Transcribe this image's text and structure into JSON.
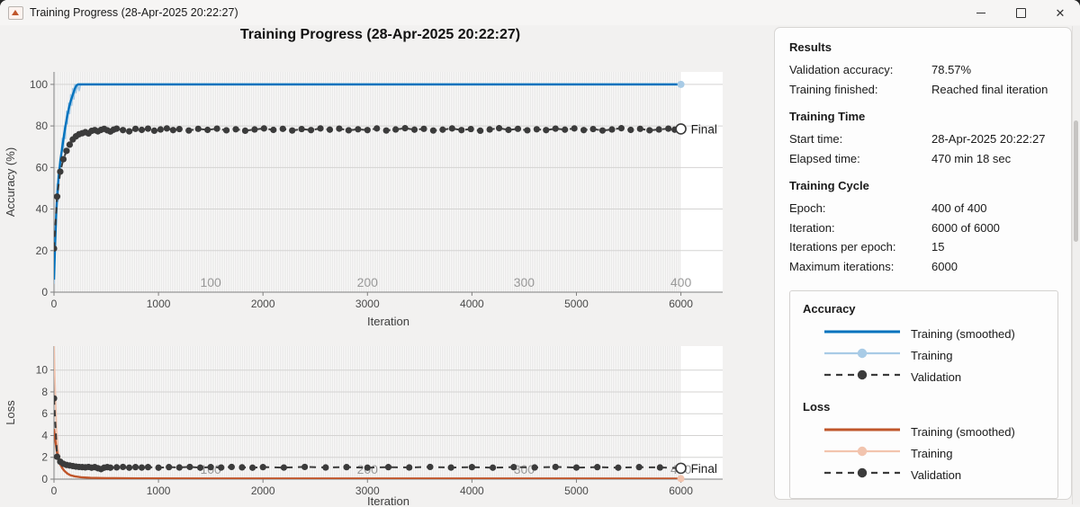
{
  "window": {
    "title": "Training Progress (28-Apr-2025 20:22:27)",
    "icons": {
      "app": "matlab-icon",
      "minimize": "minimize-icon",
      "maximize": "maximize-icon",
      "close": "close-icon"
    }
  },
  "header": {
    "title": "Training Progress (28-Apr-2025 20:22:27)"
  },
  "colors": {
    "training_smoothed_blue": "#0072bd",
    "training_raw_blue": "#a8cbe6",
    "training_smoothed_orange": "#c0562b",
    "training_raw_orange": "#f2c4ae",
    "validation_dark": "#3b3b3b",
    "epoch_label_gray": "#9a9a9a"
  },
  "panel": {
    "sections": [
      {
        "heading": "Results",
        "rows": [
          {
            "label": "Validation accuracy:",
            "value": "78.57%"
          },
          {
            "label": "Training finished:",
            "value": "Reached final iteration"
          }
        ]
      },
      {
        "heading": "Training Time",
        "rows": [
          {
            "label": "Start time:",
            "value": "28-Apr-2025 20:22:27"
          },
          {
            "label": "Elapsed time:",
            "value": "470 min 18 sec"
          }
        ]
      },
      {
        "heading": "Training Cycle",
        "rows": [
          {
            "label": "Epoch:",
            "value": "400 of 400"
          },
          {
            "label": "Iteration:",
            "value": "6000 of 6000"
          },
          {
            "label": "Iterations per epoch:",
            "value": "15"
          },
          {
            "label": "Maximum iterations:",
            "value": "6000"
          }
        ]
      }
    ],
    "legend": {
      "groups": [
        {
          "heading": "Accuracy",
          "entries": [
            {
              "label": "Training (smoothed)",
              "style": "solid",
              "color": "#0072bd"
            },
            {
              "label": "Training",
              "style": "solid-dot",
              "color": "#a8cbe6"
            },
            {
              "label": "Validation",
              "style": "dashed-dot",
              "color": "#3b3b3b"
            }
          ]
        },
        {
          "heading": "Loss",
          "entries": [
            {
              "label": "Training (smoothed)",
              "style": "solid",
              "color": "#c0562b"
            },
            {
              "label": "Training",
              "style": "solid-dot",
              "color": "#f2c4ae"
            },
            {
              "label": "Validation",
              "style": "dashed-dot",
              "color": "#3b3b3b"
            }
          ]
        }
      ]
    }
  },
  "chart_data": [
    {
      "type": "line",
      "title": "Training Progress (28-Apr-2025 20:22:27)",
      "xlabel": "Iteration",
      "ylabel": "Accuracy (%)",
      "xlim": [
        0,
        6400
      ],
      "ylim": [
        0,
        106
      ],
      "xticks": [
        0,
        1000,
        2000,
        3000,
        4000,
        5000,
        6000
      ],
      "yticks": [
        0,
        20,
        40,
        60,
        80,
        100
      ],
      "grid": {
        "vertical_epoch_stripes": true,
        "stripe_end": 6000
      },
      "epoch_labels": {
        "values": [
          "100",
          "200",
          "300",
          "400"
        ],
        "iterations": [
          1500,
          3000,
          4500,
          6000
        ]
      },
      "series": [
        {
          "name": "Training",
          "style": "raw",
          "color": "#a8cbe6",
          "points": [
            [
              0,
              4
            ],
            [
              10,
              26
            ],
            [
              20,
              32
            ],
            [
              30,
              52
            ],
            [
              40,
              44
            ],
            [
              50,
              60
            ],
            [
              60,
              57
            ],
            [
              70,
              66
            ],
            [
              80,
              74
            ],
            [
              90,
              68
            ],
            [
              100,
              80
            ],
            [
              110,
              74
            ],
            [
              120,
              87
            ],
            [
              130,
              81
            ],
            [
              140,
              91
            ],
            [
              150,
              86
            ],
            [
              160,
              95
            ],
            [
              170,
              90
            ],
            [
              180,
              98
            ],
            [
              190,
              93
            ],
            [
              200,
              100
            ],
            [
              210,
              96
            ],
            [
              225,
              100
            ],
            [
              240,
              97
            ],
            [
              255,
              100
            ],
            [
              6000,
              100
            ]
          ]
        },
        {
          "name": "Training (smoothed)",
          "style": "smoothed",
          "color": "#0072bd",
          "points": [
            [
              0,
              6
            ],
            [
              10,
              22
            ],
            [
              20,
              36
            ],
            [
              30,
              46
            ],
            [
              45,
              56
            ],
            [
              60,
              63
            ],
            [
              80,
              70
            ],
            [
              100,
              77
            ],
            [
              120,
              83
            ],
            [
              140,
              88
            ],
            [
              160,
              92
            ],
            [
              180,
              95
            ],
            [
              200,
              98
            ],
            [
              215,
              99.5
            ],
            [
              230,
              100
            ],
            [
              6000,
              100
            ]
          ]
        },
        {
          "name": "Validation",
          "style": "validation",
          "color": "#3b3b3b",
          "points": [
            [
              0,
              21
            ],
            [
              30,
              46
            ],
            [
              60,
              58
            ],
            [
              90,
              64
            ],
            [
              120,
              68
            ],
            [
              150,
              71
            ],
            [
              180,
              73.5
            ],
            [
              210,
              75
            ],
            [
              240,
              76
            ],
            [
              270,
              76.5
            ],
            [
              300,
              77
            ],
            [
              330,
              76.4
            ],
            [
              360,
              77.6
            ],
            [
              390,
              78
            ],
            [
              420,
              77.4
            ],
            [
              450,
              78.1
            ],
            [
              480,
              78.6
            ],
            [
              510,
              77.9
            ],
            [
              540,
              77.3
            ],
            [
              570,
              78.2
            ],
            [
              600,
              78.7
            ],
            [
              660,
              78
            ],
            [
              720,
              77.4
            ],
            [
              780,
              78.6
            ],
            [
              840,
              78.1
            ],
            [
              900,
              78.7
            ],
            [
              960,
              77.7
            ],
            [
              1020,
              78.3
            ],
            [
              1080,
              78.8
            ],
            [
              1140,
              78
            ],
            [
              1200,
              78.5
            ],
            [
              1290,
              77.8
            ],
            [
              1380,
              78.6
            ],
            [
              1470,
              78.1
            ],
            [
              1560,
              78.7
            ],
            [
              1650,
              77.9
            ],
            [
              1740,
              78.4
            ],
            [
              1830,
              77.7
            ],
            [
              1920,
              78.3
            ],
            [
              2010,
              78.8
            ],
            [
              2100,
              78.1
            ],
            [
              2190,
              78.6
            ],
            [
              2280,
              77.8
            ],
            [
              2370,
              78.5
            ],
            [
              2460,
              78
            ],
            [
              2550,
              78.8
            ],
            [
              2640,
              78.2
            ],
            [
              2730,
              78.7
            ],
            [
              2820,
              77.9
            ],
            [
              2910,
              78.4
            ],
            [
              3000,
              78
            ],
            [
              3090,
              78.8
            ],
            [
              3180,
              77.8
            ],
            [
              3270,
              78.3
            ],
            [
              3360,
              78.9
            ],
            [
              3450,
              78.2
            ],
            [
              3540,
              78.6
            ],
            [
              3630,
              77.8
            ],
            [
              3720,
              78.2
            ],
            [
              3810,
              78.8
            ],
            [
              3900,
              78
            ],
            [
              3990,
              78.5
            ],
            [
              4080,
              77.7
            ],
            [
              4170,
              78.3
            ],
            [
              4260,
              78.9
            ],
            [
              4350,
              78.1
            ],
            [
              4440,
              78.6
            ],
            [
              4530,
              77.9
            ],
            [
              4620,
              78.4
            ],
            [
              4710,
              78
            ],
            [
              4800,
              78.7
            ],
            [
              4890,
              78.2
            ],
            [
              4980,
              78.8
            ],
            [
              5070,
              78
            ],
            [
              5160,
              78.5
            ],
            [
              5250,
              77.8
            ],
            [
              5340,
              78.3
            ],
            [
              5430,
              78.9
            ],
            [
              5520,
              78.1
            ],
            [
              5610,
              78.6
            ],
            [
              5700,
              77.9
            ],
            [
              5790,
              78.3
            ],
            [
              5880,
              78.7
            ],
            [
              5940,
              78.2
            ],
            [
              6000,
              78.57
            ]
          ]
        }
      ],
      "raw_end_marker": {
        "iteration": 6000,
        "value": 100,
        "color": "#a8cbe6"
      },
      "final_marker": {
        "iteration": 6000,
        "value": 78.57,
        "label": "Final"
      }
    },
    {
      "type": "line",
      "title": "",
      "xlabel": "Iteration",
      "ylabel": "Loss",
      "xlim": [
        0,
        6400
      ],
      "ylim": [
        0,
        12.2
      ],
      "xticks": [
        0,
        1000,
        2000,
        3000,
        4000,
        5000,
        6000
      ],
      "yticks": [
        0,
        2,
        4,
        6,
        8,
        10
      ],
      "grid": {
        "vertical_epoch_stripes": true,
        "stripe_end": 6000
      },
      "epoch_labels": {
        "values": [
          "100",
          "200",
          "300",
          "400"
        ],
        "iterations": [
          1500,
          3000,
          4500,
          6000
        ]
      },
      "series": [
        {
          "name": "Training",
          "style": "raw",
          "color": "#f2c4ae",
          "points": [
            [
              0,
              12.2
            ],
            [
              8,
              9.5
            ],
            [
              16,
              6.8
            ],
            [
              25,
              4.6
            ],
            [
              35,
              3.2
            ],
            [
              50,
              2.1
            ],
            [
              70,
              1.3
            ],
            [
              90,
              0.85
            ],
            [
              120,
              0.55
            ],
            [
              160,
              0.35
            ],
            [
              220,
              0.22
            ],
            [
              300,
              0.15
            ],
            [
              450,
              0.1
            ],
            [
              700,
              0.08
            ],
            [
              1500,
              0.06
            ],
            [
              6000,
              0.05
            ]
          ]
        },
        {
          "name": "Training (smoothed)",
          "style": "smoothed",
          "color": "#c0562b",
          "points": [
            [
              0,
              4.6
            ],
            [
              10,
              3.8
            ],
            [
              20,
              3.0
            ],
            [
              30,
              2.4
            ],
            [
              45,
              1.8
            ],
            [
              60,
              1.35
            ],
            [
              80,
              1.0
            ],
            [
              100,
              0.75
            ],
            [
              130,
              0.5
            ],
            [
              160,
              0.35
            ],
            [
              200,
              0.25
            ],
            [
              260,
              0.17
            ],
            [
              350,
              0.12
            ],
            [
              500,
              0.09
            ],
            [
              800,
              0.07
            ],
            [
              1500,
              0.06
            ],
            [
              6000,
              0.05
            ]
          ]
        },
        {
          "name": "Validation",
          "style": "validation",
          "color": "#3b3b3b",
          "points": [
            [
              0,
              7.4
            ],
            [
              30,
              2.05
            ],
            [
              60,
              1.6
            ],
            [
              90,
              1.4
            ],
            [
              120,
              1.3
            ],
            [
              150,
              1.25
            ],
            [
              180,
              1.2
            ],
            [
              210,
              1.15
            ],
            [
              240,
              1.12
            ],
            [
              270,
              1.1
            ],
            [
              300,
              1.08
            ],
            [
              330,
              1.12
            ],
            [
              360,
              1.05
            ],
            [
              390,
              1.1
            ],
            [
              420,
              1.0
            ],
            [
              450,
              0.92
            ],
            [
              480,
              1.05
            ],
            [
              510,
              1.1
            ],
            [
              540,
              1.05
            ],
            [
              600,
              1.08
            ],
            [
              660,
              1.12
            ],
            [
              720,
              1.05
            ],
            [
              780,
              1.1
            ],
            [
              840,
              1.06
            ],
            [
              900,
              1.1
            ],
            [
              1000,
              1.05
            ],
            [
              1100,
              1.1
            ],
            [
              1200,
              1.07
            ],
            [
              1300,
              1.12
            ],
            [
              1400,
              1.05
            ],
            [
              1500,
              1.1
            ],
            [
              1600,
              1.06
            ],
            [
              1700,
              1.12
            ],
            [
              1800,
              1.08
            ],
            [
              1900,
              1.05
            ],
            [
              2000,
              1.1
            ],
            [
              2200,
              1.06
            ],
            [
              2400,
              1.12
            ],
            [
              2600,
              1.07
            ],
            [
              2800,
              1.1
            ],
            [
              3000,
              1.05
            ],
            [
              3200,
              1.1
            ],
            [
              3400,
              1.07
            ],
            [
              3600,
              1.12
            ],
            [
              3800,
              1.06
            ],
            [
              4000,
              1.1
            ],
            [
              4200,
              1.05
            ],
            [
              4400,
              1.1
            ],
            [
              4600,
              1.07
            ],
            [
              4800,
              1.12
            ],
            [
              5000,
              1.06
            ],
            [
              5200,
              1.1
            ],
            [
              5400,
              1.05
            ],
            [
              5600,
              1.1
            ],
            [
              5800,
              1.07
            ],
            [
              6000,
              1.0
            ]
          ]
        }
      ],
      "raw_end_marker": {
        "iteration": 6000,
        "value": 0.05,
        "color": "#f2c4ae"
      },
      "final_marker": {
        "iteration": 6000,
        "value": 1.0,
        "label": "Final"
      }
    }
  ]
}
